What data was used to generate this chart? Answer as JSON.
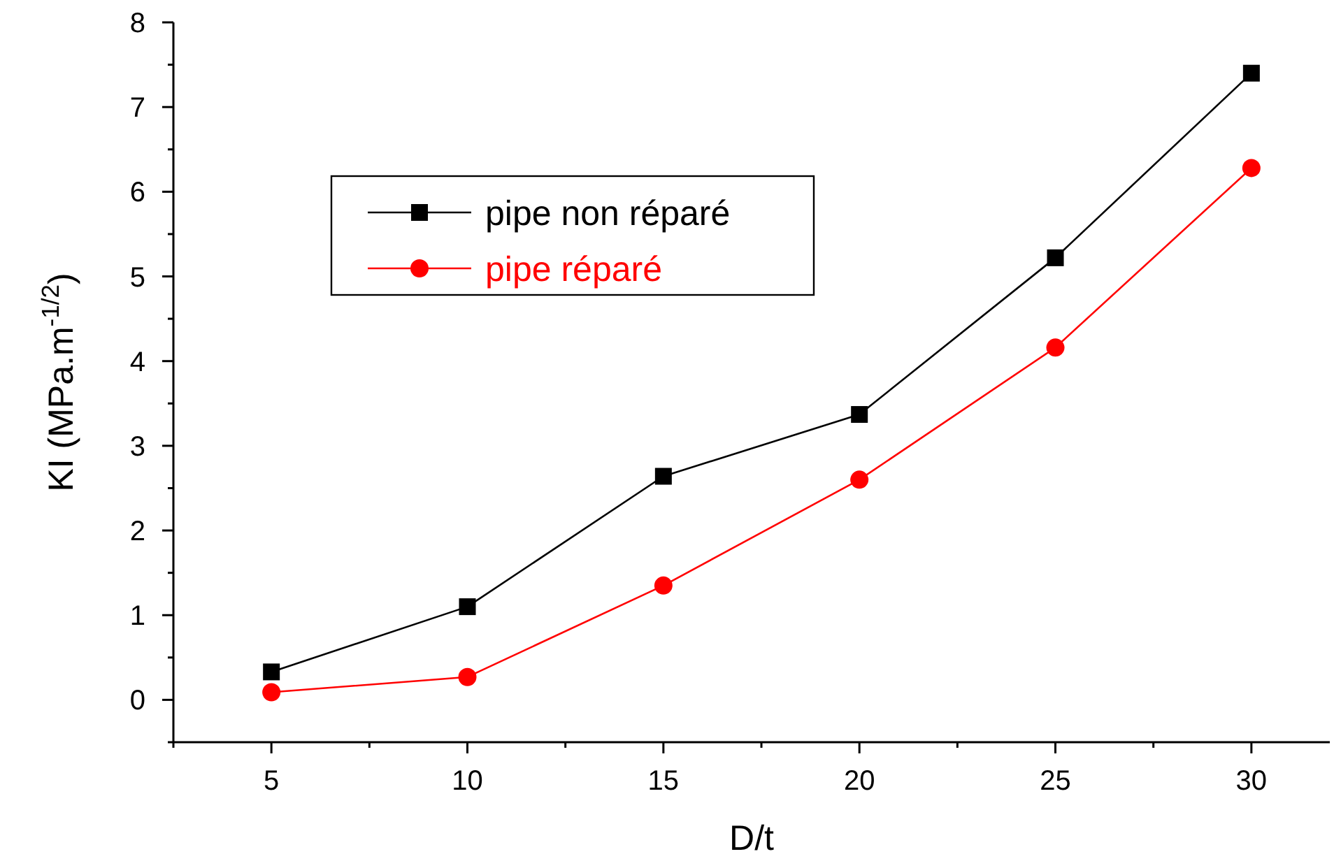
{
  "chart_data": {
    "type": "line",
    "xlabel": "D/t",
    "ylabel": "KI (MPa.m$^{-1/2}$)",
    "x": [
      5,
      10,
      15,
      20,
      25,
      30
    ],
    "series": [
      {
        "name": "pipe non réparé",
        "color": "#000000",
        "marker": "square",
        "values": [
          0.33,
          1.1,
          2.64,
          3.37,
          5.22,
          7.4
        ]
      },
      {
        "name": "pipe réparé",
        "color": "#ff0000",
        "marker": "circle",
        "values": [
          0.09,
          0.27,
          1.35,
          2.6,
          4.16,
          6.28
        ]
      }
    ],
    "xlim": [
      2.5,
      32
    ],
    "xticks": [
      {
        "value": 2.5,
        "label": null
      },
      5,
      {
        "value": 7.5,
        "label": null
      },
      10,
      {
        "value": 12.5,
        "label": null
      },
      15,
      {
        "value": 17.5,
        "label": null
      },
      20,
      {
        "value": 22.5,
        "label": null
      },
      25,
      {
        "value": 27.5,
        "label": null
      },
      30
    ],
    "ylim": [
      -0.5,
      8
    ],
    "yticks": [
      {
        "value": -0.5,
        "label": null
      },
      0,
      {
        "value": 0.5,
        "label": null
      },
      1,
      {
        "value": 1.5,
        "label": null
      },
      2,
      {
        "value": 2.5,
        "label": null
      },
      3,
      {
        "value": 3.5,
        "label": null
      },
      4,
      {
        "value": 4.5,
        "label": null
      },
      5,
      {
        "value": 5.5,
        "label": null
      },
      6,
      {
        "value": 6.5,
        "label": null
      },
      7,
      {
        "value": 7.5,
        "label": null
      },
      8
    ],
    "grid": false,
    "legend": "top left",
    "line_style": "solid"
  }
}
